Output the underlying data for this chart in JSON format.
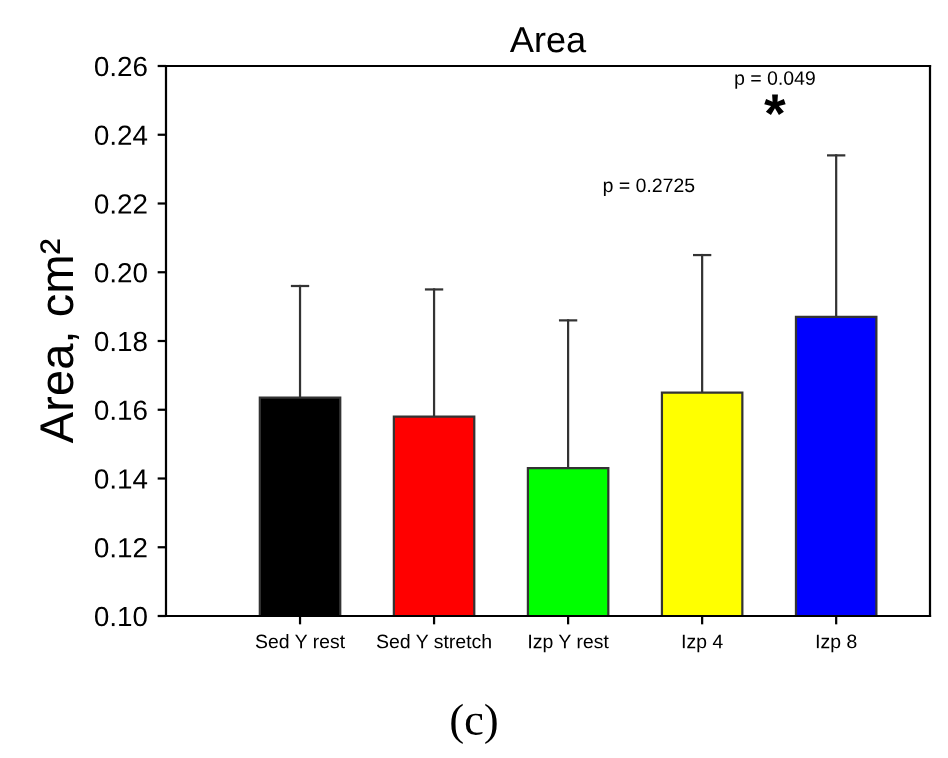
{
  "chart_data": {
    "type": "bar",
    "title": "Area",
    "ylabel": "Area, cm²",
    "categories": [
      "Sed Y rest",
      "Sed Y stretch",
      "Izp Y rest",
      "Izp 4",
      "Izp 8"
    ],
    "values": [
      0.1635,
      0.158,
      0.143,
      0.165,
      0.187
    ],
    "colors": [
      "#000000",
      "#ff0000",
      "#00ff00",
      "#ffff00",
      "#0000ff"
    ],
    "errors": [
      [
        0.1635,
        0.196
      ],
      [
        0.158,
        0.195
      ],
      [
        0.143,
        0.186
      ],
      [
        0.165,
        0.205
      ],
      [
        0.187,
        0.234
      ]
    ],
    "ylim": [
      0.1,
      0.26
    ],
    "yticks": [
      {
        "value": 0.1,
        "label": "0.10"
      },
      {
        "value": 0.12,
        "label": "0.12"
      },
      {
        "value": 0.14,
        "label": "0.14"
      },
      {
        "value": 0.16,
        "label": "0.16"
      },
      {
        "value": 0.18,
        "label": "0.18"
      },
      {
        "value": 0.2,
        "label": "0.20"
      },
      {
        "value": 0.22,
        "label": "0.22"
      },
      {
        "value": 0.24,
        "label": "0.24"
      },
      {
        "value": 0.26,
        "label": "0.26"
      }
    ],
    "grid": false,
    "annotations": [
      "p = 0.2725",
      "p = 0.049",
      "*",
      "(c)"
    ]
  }
}
